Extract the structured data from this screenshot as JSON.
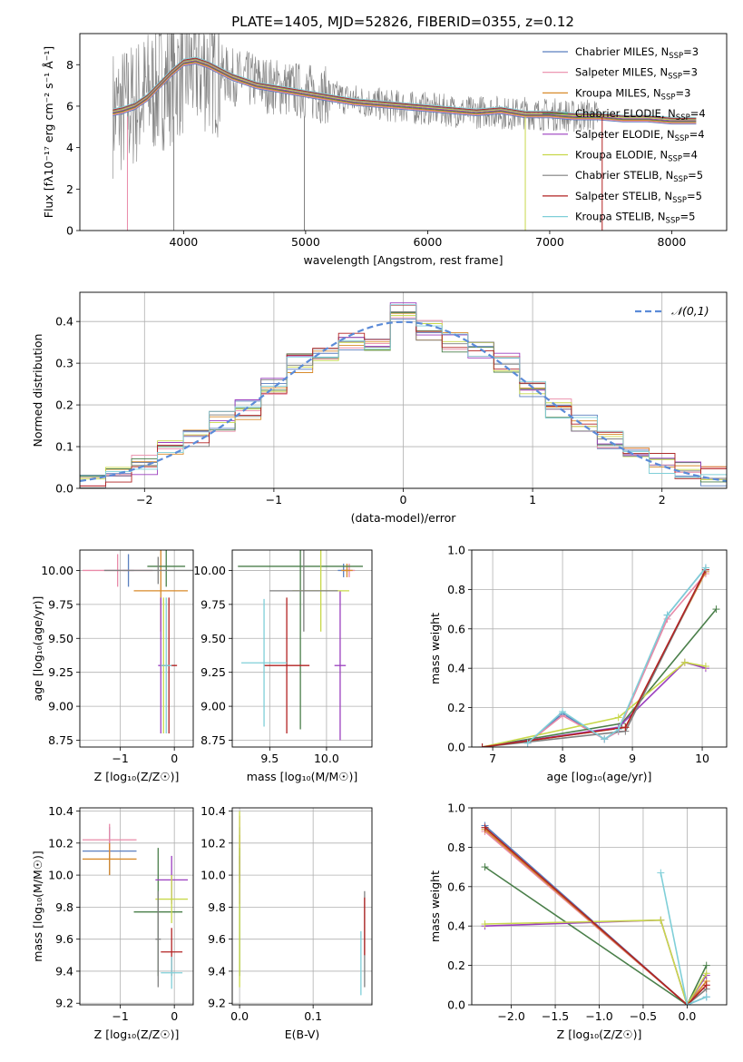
{
  "figure": {
    "title": "PLATE=1405, MJD=52826, FIBERID=0355, z=0.12"
  },
  "colors": {
    "Chabrier MILES": "#5a7fbf",
    "Salpeter MILES": "#e98aa8",
    "Kroupa MILES": "#d88a2a",
    "Chabrier ELODIE": "#4a7f4a",
    "Salpeter ELODIE": "#9b3fbf",
    "Kroupa ELODIE": "#c8d84a",
    "Chabrier STELIB": "#7f7f7f",
    "Salpeter STELIB": "#b22222",
    "Kroupa STELIB": "#7fcfd8",
    "normal_curve": "#5b8bd8",
    "grid": "#b0b0b0"
  },
  "chart_data": [
    {
      "id": "spectrum",
      "type": "line",
      "title": "PLATE=1405, MJD=52826, FIBERID=0355, z=0.12",
      "xlabel": "wavelength [Angstrom, rest frame]",
      "ylabel": "Flux [fλ10⁻¹⁷ erg cm⁻² s⁻¹ Å⁻¹]",
      "xlim": [
        3150,
        8450
      ],
      "ylim": [
        0,
        9.5
      ],
      "xticks": [
        4000,
        5000,
        6000,
        7000,
        8000
      ],
      "yticks": [
        0,
        2,
        4,
        6,
        8
      ],
      "grid": false,
      "legend_position": "top-right",
      "legend": [
        {
          "label": "Chabrier MILES, N",
          "sub": "SSP",
          "suffix": "=3",
          "series": "Chabrier MILES"
        },
        {
          "label": "Salpeter MILES, N",
          "sub": "SSP",
          "suffix": "=3",
          "series": "Salpeter MILES"
        },
        {
          "label": "Kroupa MILES, N",
          "sub": "SSP",
          "suffix": "=3",
          "series": "Kroupa MILES"
        },
        {
          "label": "Chabrier ELODIE, N",
          "sub": "SSP",
          "suffix": "=4",
          "series": "Chabrier ELODIE"
        },
        {
          "label": "Salpeter ELODIE, N",
          "sub": "SSP",
          "suffix": "=4",
          "series": "Salpeter ELODIE"
        },
        {
          "label": "Kroupa ELODIE, N",
          "sub": "SSP",
          "suffix": "=4",
          "series": "Kroupa ELODIE"
        },
        {
          "label": "Chabrier STELIB, N",
          "sub": "SSP",
          "suffix": "=5",
          "series": "Chabrier STELIB"
        },
        {
          "label": "Salpeter STELIB, N",
          "sub": "SSP",
          "suffix": "=5",
          "series": "Salpeter STELIB"
        },
        {
          "label": "Kroupa STELIB, N",
          "sub": "SSP",
          "suffix": "=5",
          "series": "Kroupa STELIB"
        }
      ],
      "data_series": {
        "name": "Chabrier STELIB",
        "x": [
          3420,
          3500,
          3600,
          3700,
          3800,
          3900,
          4000,
          4100,
          4200,
          4300,
          4400,
          4500,
          4600,
          4700,
          4800,
          4900,
          5000,
          5100,
          5200,
          5300,
          5400,
          5500,
          5600,
          5700,
          5800,
          5900,
          6000,
          6100,
          6200,
          6300,
          6400,
          6500,
          6600,
          6700,
          6800,
          6900,
          7000,
          7100,
          7200,
          7300,
          7400
        ],
        "y": [
          5.7,
          5.8,
          6.1,
          6.6,
          6.9,
          7.3,
          7.7,
          7.9,
          7.8,
          7.6,
          7.4,
          7.3,
          7.2,
          7.0,
          6.9,
          6.8,
          6.7,
          6.6,
          6.5,
          6.4,
          6.3,
          6.2,
          6.1,
          6.0,
          6.0,
          5.9,
          5.9,
          5.8,
          5.8,
          5.7,
          5.7,
          5.8,
          5.7,
          5.6,
          5.7,
          5.6,
          5.6,
          5.6,
          5.5,
          5.6,
          5.5
        ]
      },
      "model_series": {
        "x": [
          3420,
          3500,
          3600,
          3700,
          3800,
          3900,
          4000,
          4100,
          4200,
          4300,
          4400,
          4500,
          4600,
          4700,
          4800,
          4900,
          5000,
          5200,
          5400,
          5600,
          5800,
          6000,
          6200,
          6400,
          6600,
          6800,
          7000,
          7200,
          7400,
          7600,
          7800,
          8000,
          8200
        ],
        "y": [
          5.7,
          5.8,
          6.0,
          6.4,
          7.0,
          7.6,
          8.1,
          8.2,
          8.0,
          7.7,
          7.4,
          7.2,
          7.0,
          6.9,
          6.8,
          6.7,
          6.6,
          6.4,
          6.2,
          6.1,
          6.0,
          5.9,
          5.8,
          5.7,
          5.8,
          5.6,
          5.6,
          5.5,
          5.5,
          5.4,
          5.4,
          5.3,
          5.3
        ]
      }
    },
    {
      "id": "residuals",
      "type": "line",
      "xlabel": "(data-model)/error",
      "ylabel": "Normed distribution",
      "xlim": [
        -2.5,
        2.5
      ],
      "ylim": [
        0,
        0.47
      ],
      "xticks": [
        -2,
        -1,
        0,
        1,
        2
      ],
      "yticks": [
        0.0,
        0.1,
        0.2,
        0.3,
        0.4
      ],
      "grid": true,
      "legend_position": "top-right",
      "legend": [
        {
          "label": "𝒩(0,1)",
          "series": "normal"
        }
      ],
      "bin_centers": [
        -2.4,
        -2.2,
        -2.0,
        -1.8,
        -1.6,
        -1.4,
        -1.2,
        -1.0,
        -0.8,
        -0.6,
        -0.4,
        -0.2,
        0.0,
        0.2,
        0.4,
        0.6,
        0.8,
        1.0,
        1.2,
        1.4,
        1.6,
        1.8,
        2.0,
        2.2,
        2.4
      ],
      "hist_values": [
        0.02,
        0.035,
        0.055,
        0.09,
        0.12,
        0.16,
        0.19,
        0.24,
        0.3,
        0.33,
        0.35,
        0.34,
        0.42,
        0.38,
        0.35,
        0.33,
        0.3,
        0.24,
        0.19,
        0.16,
        0.12,
        0.08,
        0.06,
        0.045,
        0.03
      ]
    },
    {
      "id": "age-vs-Z",
      "type": "scatter",
      "xlabel": "Z [log₁₀(Z/Z☉)]",
      "ylabel": "age  [log₁₀(age/yr)]",
      "xlim": [
        -1.75,
        0.35
      ],
      "ylim": [
        8.7,
        10.15
      ],
      "xticks": [
        -1,
        0
      ],
      "yticks": [
        8.75,
        9.0,
        9.25,
        9.5,
        9.75,
        10.0
      ],
      "grid": true,
      "points": [
        {
          "series": "Chabrier MILES",
          "x": -0.85,
          "y": 10.0,
          "xerr": 0.1,
          "yerr": 0.12
        },
        {
          "series": "Salpeter MILES",
          "x": -1.05,
          "y": 10.0,
          "xerr": 0.65,
          "yerr": 0.12
        },
        {
          "series": "Kroupa MILES",
          "x": -0.25,
          "y": 9.85,
          "xerr": 0.5,
          "yerr": 0.3
        },
        {
          "series": "Chabrier ELODIE",
          "x": -0.15,
          "y": 10.03,
          "xerr": 0.35,
          "yerr": 0.15
        },
        {
          "series": "Salpeter ELODIE",
          "x": -0.25,
          "y": 9.3,
          "xerr": 0.05,
          "yerr": 0.5
        },
        {
          "series": "Kroupa ELODIE",
          "x": -0.2,
          "y": 9.3,
          "xerr": 0.05,
          "yerr": 0.5
        },
        {
          "series": "Chabrier STELIB",
          "x": -0.3,
          "y": 10.0,
          "xerr": 1.0,
          "yerr": 0.1
        },
        {
          "series": "Salpeter STELIB",
          "x": -0.1,
          "y": 9.3,
          "xerr": 0.15,
          "yerr": 0.5
        },
        {
          "series": "Kroupa STELIB",
          "x": -0.15,
          "y": 9.3,
          "xerr": 0.1,
          "yerr": 0.5
        }
      ]
    },
    {
      "id": "age-vs-mass",
      "type": "scatter",
      "xlabel": "mass [log₁₀(M/M☉)]",
      "ylabel": "",
      "xlim": [
        9.17,
        10.4
      ],
      "ylim": [
        8.7,
        10.15
      ],
      "xticks": [
        9.5,
        10.0
      ],
      "yticks": [
        8.75,
        9.0,
        9.25,
        9.5,
        9.75,
        10.0
      ],
      "grid": true,
      "points": [
        {
          "series": "Chabrier MILES",
          "x": 10.15,
          "y": 10.0,
          "xerr": 0.05,
          "yerr": 0.05
        },
        {
          "series": "Salpeter MILES",
          "x": 10.2,
          "y": 10.0,
          "xerr": 0.05,
          "yerr": 0.05
        },
        {
          "series": "Kroupa MILES",
          "x": 10.18,
          "y": 10.0,
          "xerr": 0.05,
          "yerr": 0.05
        },
        {
          "series": "Chabrier ELODIE",
          "x": 9.77,
          "y": 10.03,
          "xerr": 0.55,
          "yerr": 1.2
        },
        {
          "series": "Salpeter ELODIE",
          "x": 10.12,
          "y": 9.3,
          "xerr": 0.05,
          "yerr": 0.55
        },
        {
          "series": "Kroupa ELODIE",
          "x": 9.95,
          "y": 9.85,
          "xerr": 0.25,
          "yerr": 0.3
        },
        {
          "series": "Chabrier STELIB",
          "x": 9.8,
          "y": 9.85,
          "xerr": 0.3,
          "yerr": 0.3
        },
        {
          "series": "Salpeter STELIB",
          "x": 9.65,
          "y": 9.3,
          "xerr": 0.2,
          "yerr": 0.5
        },
        {
          "series": "Kroupa STELIB",
          "x": 9.45,
          "y": 9.32,
          "xerr": 0.2,
          "yerr": 0.47
        }
      ]
    },
    {
      "id": "weight-vs-age",
      "type": "line",
      "xlabel": "age  [log₁₀(age/yr)]",
      "ylabel": "mass weight",
      "xlim": [
        6.7,
        10.35
      ],
      "ylim": [
        0,
        1.0
      ],
      "xticks": [
        7,
        8,
        9,
        10
      ],
      "yticks": [
        0.0,
        0.2,
        0.4,
        0.6,
        0.8,
        1.0
      ],
      "grid": true,
      "series": [
        {
          "name": "Chabrier MILES",
          "x": [
            7.5,
            8.0,
            8.6,
            8.8,
            9.5,
            10.05
          ],
          "y": [
            0.02,
            0.17,
            0.04,
            0.08,
            0.67,
            0.91
          ]
        },
        {
          "name": "Salpeter MILES",
          "x": [
            7.5,
            8.0,
            8.6,
            8.8,
            9.5,
            10.05
          ],
          "y": [
            0.02,
            0.16,
            0.04,
            0.08,
            0.65,
            0.88
          ]
        },
        {
          "name": "Kroupa MILES",
          "x": [
            6.85,
            8.9,
            10.05
          ],
          "y": [
            0.0,
            0.1,
            0.89
          ]
        },
        {
          "name": "Chabrier ELODIE",
          "x": [
            6.85,
            8.85,
            10.2
          ],
          "y": [
            0.0,
            0.12,
            0.7
          ]
        },
        {
          "name": "Salpeter ELODIE",
          "x": [
            6.85,
            8.8,
            9.75,
            10.05
          ],
          "y": [
            0.0,
            0.1,
            0.43,
            0.4
          ]
        },
        {
          "name": "Kroupa ELODIE",
          "x": [
            6.85,
            8.8,
            9.75,
            10.05
          ],
          "y": [
            0.0,
            0.15,
            0.43,
            0.41
          ]
        },
        {
          "name": "Chabrier STELIB",
          "x": [
            6.85,
            8.9,
            10.05
          ],
          "y": [
            0.0,
            0.08,
            0.9
          ]
        },
        {
          "name": "Salpeter STELIB",
          "x": [
            6.85,
            8.9,
            10.05
          ],
          "y": [
            0.0,
            0.1,
            0.9
          ]
        },
        {
          "name": "Kroupa STELIB",
          "x": [
            7.5,
            8.0,
            8.6,
            8.8,
            9.5,
            10.05
          ],
          "y": [
            0.02,
            0.18,
            0.04,
            0.09,
            0.67,
            0.91
          ]
        }
      ]
    },
    {
      "id": "mass-vs-Z",
      "type": "scatter",
      "xlabel": "Z [log₁₀(Z/Z☉)]",
      "ylabel": "mass [log₁₀(M/M☉)]",
      "xlim": [
        -1.75,
        0.35
      ],
      "ylim": [
        9.19,
        10.42
      ],
      "xticks": [
        -1,
        0
      ],
      "yticks": [
        9.2,
        9.4,
        9.6,
        9.8,
        10.0,
        10.2,
        10.4
      ],
      "grid": true,
      "points": [
        {
          "series": "Chabrier MILES",
          "x": -1.2,
          "y": 10.15,
          "xerr": 0.5,
          "yerr": 0.15
        },
        {
          "series": "Salpeter MILES",
          "x": -1.2,
          "y": 10.22,
          "xerr": 0.5,
          "yerr": 0.1
        },
        {
          "series": "Kroupa MILES",
          "x": -1.2,
          "y": 10.1,
          "xerr": 0.5,
          "yerr": 0.1
        },
        {
          "series": "Chabrier ELODIE",
          "x": -0.3,
          "y": 9.77,
          "xerr": 0.45,
          "yerr": 0.4
        },
        {
          "series": "Salpeter ELODIE",
          "x": -0.05,
          "y": 9.97,
          "xerr": 0.3,
          "yerr": 0.15
        },
        {
          "series": "Kroupa ELODIE",
          "x": -0.05,
          "y": 9.85,
          "xerr": 0.3,
          "yerr": 0.15
        },
        {
          "series": "Chabrier STELIB",
          "x": -0.3,
          "y": 9.6,
          "xerr": 0.05,
          "yerr": 0.3
        },
        {
          "series": "Salpeter STELIB",
          "x": -0.05,
          "y": 9.52,
          "xerr": 0.2,
          "yerr": 0.15
        },
        {
          "series": "Kroupa STELIB",
          "x": -0.05,
          "y": 9.39,
          "xerr": 0.2,
          "yerr": 0.1
        }
      ]
    },
    {
      "id": "mass-vs-EBV",
      "type": "scatter",
      "xlabel": "E(B-V)",
      "ylabel": "",
      "xlim": [
        -0.01,
        0.18
      ],
      "ylim": [
        9.19,
        10.42
      ],
      "xticks": [
        0.0,
        0.1
      ],
      "yticks": [
        9.2,
        9.4,
        9.6,
        9.8,
        10.0,
        10.2,
        10.4
      ],
      "grid": true,
      "points": [
        {
          "series": "Chabrier MILES",
          "x": 0.0,
          "y": 10.15,
          "xerr": 0,
          "yerr": 0.15
        },
        {
          "series": "Salpeter MILES",
          "x": 0.0,
          "y": 10.22,
          "xerr": 0,
          "yerr": 0.15
        },
        {
          "series": "Kroupa MILES",
          "x": 0.0,
          "y": 10.1,
          "xerr": 0,
          "yerr": 0.15
        },
        {
          "series": "Chabrier ELODIE",
          "x": 0.0,
          "y": 9.77,
          "xerr": 0,
          "yerr": 0.4
        },
        {
          "series": "Salpeter ELODIE",
          "x": 0.0,
          "y": 9.97,
          "xerr": 0,
          "yerr": 0.15
        },
        {
          "series": "Kroupa ELODIE",
          "x": 0.0,
          "y": 9.85,
          "xerr": 0,
          "yerr": 0.55
        },
        {
          "series": "Chabrier STELIB",
          "x": 0.17,
          "y": 9.6,
          "xerr": 0,
          "yerr": 0.3
        },
        {
          "series": "Salpeter STELIB",
          "x": 0.17,
          "y": 9.68,
          "xerr": 0,
          "yerr": 0.18
        },
        {
          "series": "Kroupa STELIB",
          "x": 0.165,
          "y": 9.45,
          "xerr": 0,
          "yerr": 0.2
        }
      ]
    },
    {
      "id": "weight-vs-Z",
      "type": "line",
      "xlabel": "Z [log₁₀(Z/Z☉)]",
      "ylabel": "mass weight",
      "xlim": [
        -2.45,
        0.45
      ],
      "ylim": [
        0,
        1.0
      ],
      "xticks": [
        -2.0,
        -1.5,
        -1.0,
        -0.5,
        0.0
      ],
      "yticks": [
        0.0,
        0.2,
        0.4,
        0.6,
        0.8,
        1.0
      ],
      "grid": true,
      "series": [
        {
          "name": "Chabrier MILES",
          "x": [
            -2.3,
            0.0,
            0.22
          ],
          "y": [
            0.91,
            0.0,
            0.04
          ]
        },
        {
          "name": "Salpeter MILES",
          "x": [
            -2.3,
            0.0,
            0.22
          ],
          "y": [
            0.88,
            0.0,
            0.1
          ]
        },
        {
          "name": "Kroupa MILES",
          "x": [
            -2.3,
            0.0,
            0.22
          ],
          "y": [
            0.89,
            0.0,
            0.12
          ]
        },
        {
          "name": "Chabrier ELODIE",
          "x": [
            -2.3,
            0.0,
            0.22
          ],
          "y": [
            0.7,
            0.0,
            0.2
          ]
        },
        {
          "name": "Salpeter ELODIE",
          "x": [
            -2.3,
            -0.3,
            0.0,
            0.22
          ],
          "y": [
            0.4,
            0.43,
            0.0,
            0.15
          ]
        },
        {
          "name": "Kroupa ELODIE",
          "x": [
            -2.3,
            -0.3,
            0.0,
            0.22
          ],
          "y": [
            0.41,
            0.43,
            0.0,
            0.16
          ]
        },
        {
          "name": "Chabrier STELIB",
          "x": [
            -2.3,
            0.0,
            0.22
          ],
          "y": [
            0.9,
            0.0,
            0.08
          ]
        },
        {
          "name": "Salpeter STELIB",
          "x": [
            -2.3,
            0.0,
            0.22
          ],
          "y": [
            0.9,
            0.0,
            0.1
          ]
        },
        {
          "name": "Kroupa STELIB",
          "x": [
            -0.3,
            0.0,
            0.22
          ],
          "y": [
            0.67,
            0.0,
            0.04
          ]
        }
      ]
    }
  ]
}
